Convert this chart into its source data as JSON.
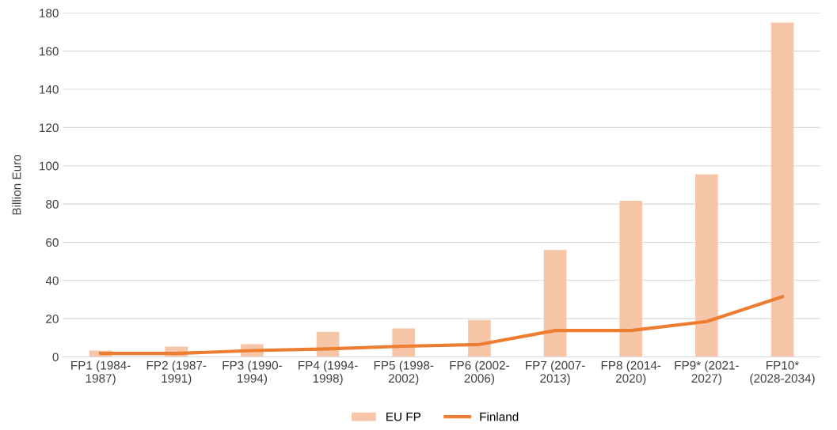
{
  "chart_data": {
    "type": "bar",
    "ylabel": "Billion Euro",
    "categories": [
      "FP1 (1984-\n1987)",
      "FP2 (1987-\n1991)",
      "FP3 (1990-\n1994)",
      "FP4 (1994-\n1998)",
      "FP5 (1998-\n2002)",
      "FP6 (2002-\n2006)",
      "FP7 (2007-\n2013)",
      "FP8 (2014-\n2020)",
      "FP9* (2021-\n2027)",
      "FP10*\n(2028-2034)"
    ],
    "series": [
      {
        "name": "EU FP",
        "color": "#f7c6a8",
        "values": [
          3.3,
          5.4,
          6.6,
          13.1,
          14.9,
          19.3,
          55.9,
          81.7,
          95.5,
          175
        ]
      },
      {
        "name": "Finland",
        "type": "line",
        "color": "#ed7d31",
        "values": [
          1.8,
          1.8,
          3.3,
          4.2,
          5.6,
          6.5,
          13.8,
          13.8,
          18.5,
          31.5
        ]
      }
    ],
    "ylim": [
      0,
      180
    ],
    "yticks": [
      0,
      20,
      40,
      60,
      80,
      100,
      120,
      140,
      160,
      180
    ],
    "grid": "y",
    "legend": "bottom",
    "marker": "none",
    "line_style": "solid"
  }
}
